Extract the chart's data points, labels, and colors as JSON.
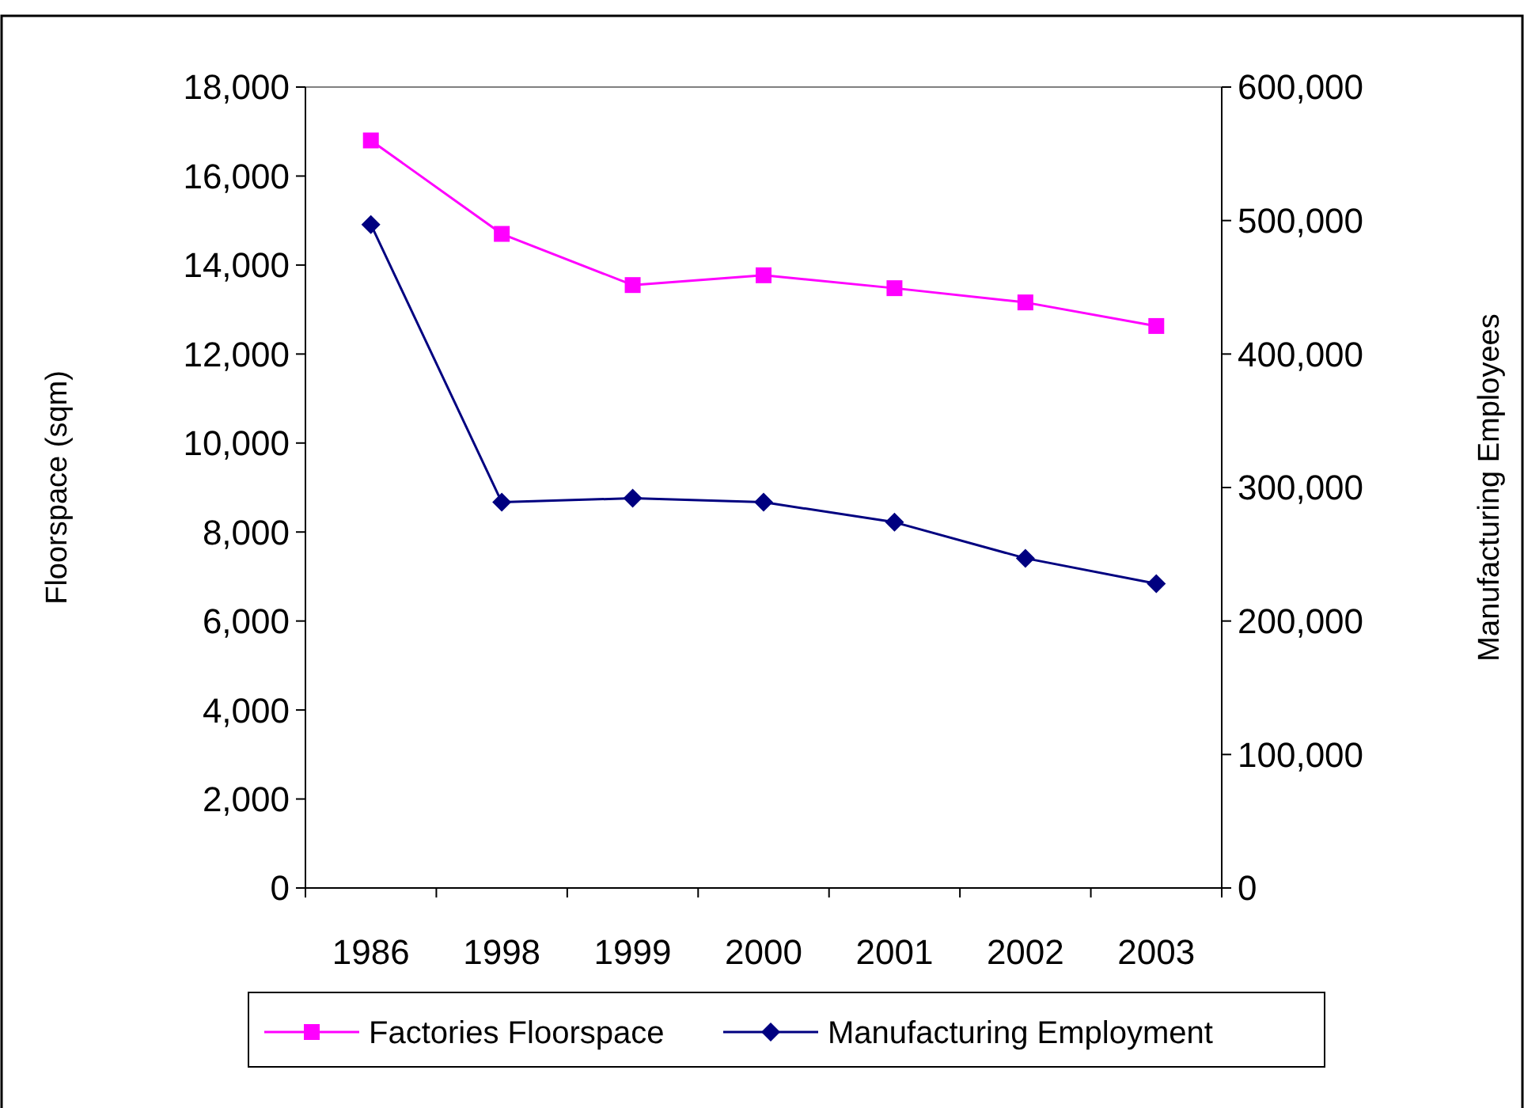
{
  "chart_data": {
    "type": "line",
    "categories": [
      "1986",
      "1998",
      "1999",
      "2000",
      "2001",
      "2002",
      "2003"
    ],
    "ylabel": "Floorspace (sqm)",
    "y2label": "Manufacturing Employees",
    "ylim": [
      0,
      18000
    ],
    "yticks": [
      0,
      {
        "value": 2000,
        "label": "2,000"
      },
      {
        "value": 4000,
        "label": "4,000"
      },
      {
        "value": 6000,
        "label": "6,000"
      },
      {
        "value": 8000,
        "label": "8,000"
      },
      {
        "value": 10000,
        "label": "10,000"
      },
      {
        "value": 12000,
        "label": "12,000"
      },
      {
        "value": 14000,
        "label": "14,000"
      },
      {
        "value": 16000,
        "label": "16,000"
      },
      {
        "value": 18000,
        "label": "18,000"
      }
    ],
    "y2lim": [
      0,
      600000
    ],
    "y2ticks": [
      0,
      {
        "value": 100000,
        "label": "100,000"
      },
      {
        "value": 200000,
        "label": "200,000"
      },
      {
        "value": 300000,
        "label": "300,000"
      },
      {
        "value": 400000,
        "label": "400,000"
      },
      {
        "value": 500000,
        "label": "500,000"
      },
      {
        "value": 600000,
        "label": "600,000"
      }
    ],
    "series": [
      {
        "name": "Factories Floorspace",
        "color": "#ff00ff",
        "marker": "square",
        "values": [
          16800,
          14700,
          13550,
          13770,
          13480,
          13160,
          12630
        ]
      },
      {
        "name": "Manufacturing Employment",
        "color": "#000080",
        "marker": "diamond",
        "axis": "y2",
        "values": [
          497000,
          289000,
          292000,
          289000,
          274000,
          247000,
          228000
        ]
      }
    ],
    "grid": false,
    "legend": "bottom",
    "line_style": "solid"
  }
}
